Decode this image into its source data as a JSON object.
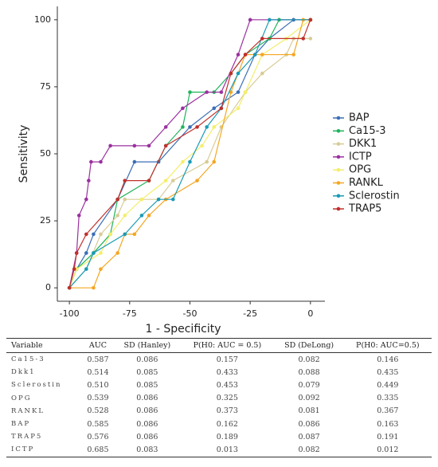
{
  "chart_data": {
    "type": "line",
    "xlabel": "1 - Specificity",
    "ylabel": "Sensitivity",
    "xlim": [
      -105,
      6
    ],
    "ylim": [
      -5,
      105
    ],
    "xticks": [
      -100,
      -75,
      -50,
      -25,
      0
    ],
    "yticks": [
      0,
      25,
      50,
      75,
      100
    ],
    "legend": "right",
    "series": [
      {
        "name": "BAP",
        "color": "#3b6fb6",
        "x": [
          -100,
          -97,
          -93,
          -90,
          -80,
          -73,
          -63,
          -50,
          -40,
          -30,
          -23,
          -17,
          -7,
          0
        ],
        "values": [
          0,
          7,
          13,
          20,
          33,
          47,
          47,
          60,
          67,
          73,
          87,
          93,
          100,
          100
        ]
      },
      {
        "name": "Ca15-3",
        "color": "#1fb45a",
        "x": [
          -100,
          -97,
          -90,
          -83,
          -80,
          -67,
          -60,
          -53,
          -50,
          -40,
          -33,
          -27,
          -17,
          -13,
          0
        ],
        "values": [
          0,
          7,
          13,
          20,
          33,
          40,
          53,
          60,
          73,
          73,
          80,
          87,
          93,
          100,
          100
        ]
      },
      {
        "name": "DKK1",
        "color": "#d8cc96",
        "x": [
          -100,
          -93,
          -87,
          -80,
          -77,
          -63,
          -57,
          -43,
          -37,
          -27,
          -20,
          -10,
          -7,
          0
        ],
        "values": [
          0,
          7,
          20,
          27,
          33,
          33,
          40,
          47,
          60,
          73,
          80,
          87,
          93,
          93
        ]
      },
      {
        "name": "ICTP",
        "color": "#9b30a0",
        "x": [
          -100,
          -97,
          -96,
          -93,
          -92,
          -91,
          -87,
          -83,
          -73,
          -67,
          -60,
          -53,
          -43,
          -37,
          -30,
          -25,
          0
        ],
        "values": [
          0,
          13,
          27,
          33,
          40,
          47,
          47,
          53,
          53,
          53,
          60,
          67,
          73,
          73,
          87,
          100,
          100
        ]
      },
      {
        "name": "OPG",
        "color": "#f4ee6a",
        "x": [
          -100,
          -97,
          -87,
          -83,
          -77,
          -70,
          -60,
          -53,
          -45,
          -40,
          -30,
          -27,
          -20,
          -10,
          0
        ],
        "values": [
          0,
          7,
          13,
          20,
          27,
          33,
          40,
          47,
          53,
          60,
          67,
          73,
          87,
          93,
          100
        ]
      },
      {
        "name": "RANKL",
        "color": "#f5a623",
        "x": [
          -100,
          -90,
          -87,
          -80,
          -77,
          -73,
          -67,
          -60,
          -47,
          -40,
          -33,
          -27,
          -20,
          -7,
          -3,
          0
        ],
        "values": [
          0,
          0,
          7,
          13,
          20,
          20,
          27,
          33,
          40,
          47,
          73,
          87,
          87,
          87,
          100,
          100
        ]
      },
      {
        "name": "Sclerostin",
        "color": "#1a9bb5",
        "x": [
          -100,
          -93,
          -90,
          -77,
          -70,
          -63,
          -57,
          -50,
          -43,
          -37,
          -30,
          -23,
          -17,
          0
        ],
        "values": [
          0,
          7,
          13,
          20,
          27,
          33,
          33,
          47,
          60,
          67,
          80,
          87,
          100,
          100
        ]
      },
      {
        "name": "TRAP5",
        "color": "#c0302c",
        "x": [
          -100,
          -98,
          -97,
          -93,
          -80,
          -77,
          -67,
          -60,
          -47,
          -37,
          -33,
          -27,
          -20,
          -3,
          0
        ],
        "values": [
          0,
          7,
          13,
          20,
          33,
          40,
          40,
          53,
          60,
          67,
          80,
          87,
          93,
          93,
          100
        ]
      }
    ]
  },
  "table": {
    "header": [
      "Variable",
      "AUC",
      "SD (Hanley)",
      "P(H0: AUC = 0.5)",
      "SD (DeLong)",
      "P(H0: AUC=0.5)"
    ],
    "rows": [
      [
        "Ca15-3",
        "0.587",
        "0.086",
        "0.157",
        "0.082",
        "0.146"
      ],
      [
        "Dkk1",
        "0.514",
        "0.085",
        "0.433",
        "0.088",
        "0.435"
      ],
      [
        "Sclerostin",
        "0.510",
        "0.085",
        "0.453",
        "0.079",
        "0.449"
      ],
      [
        "OPG",
        "0.539",
        "0.086",
        "0.325",
        "0.092",
        "0.335"
      ],
      [
        "RANKL",
        "0.528",
        "0.086",
        "0.373",
        "0.081",
        "0.367"
      ],
      [
        "BAP",
        "0.585",
        "0.086",
        "0.162",
        "0.086",
        "0.163"
      ],
      [
        "TRAP5",
        "0.576",
        "0.086",
        "0.189",
        "0.087",
        "0.191"
      ],
      [
        "ICTP",
        "0.685",
        "0.083",
        "0.013",
        "0.082",
        "0.012"
      ]
    ]
  }
}
